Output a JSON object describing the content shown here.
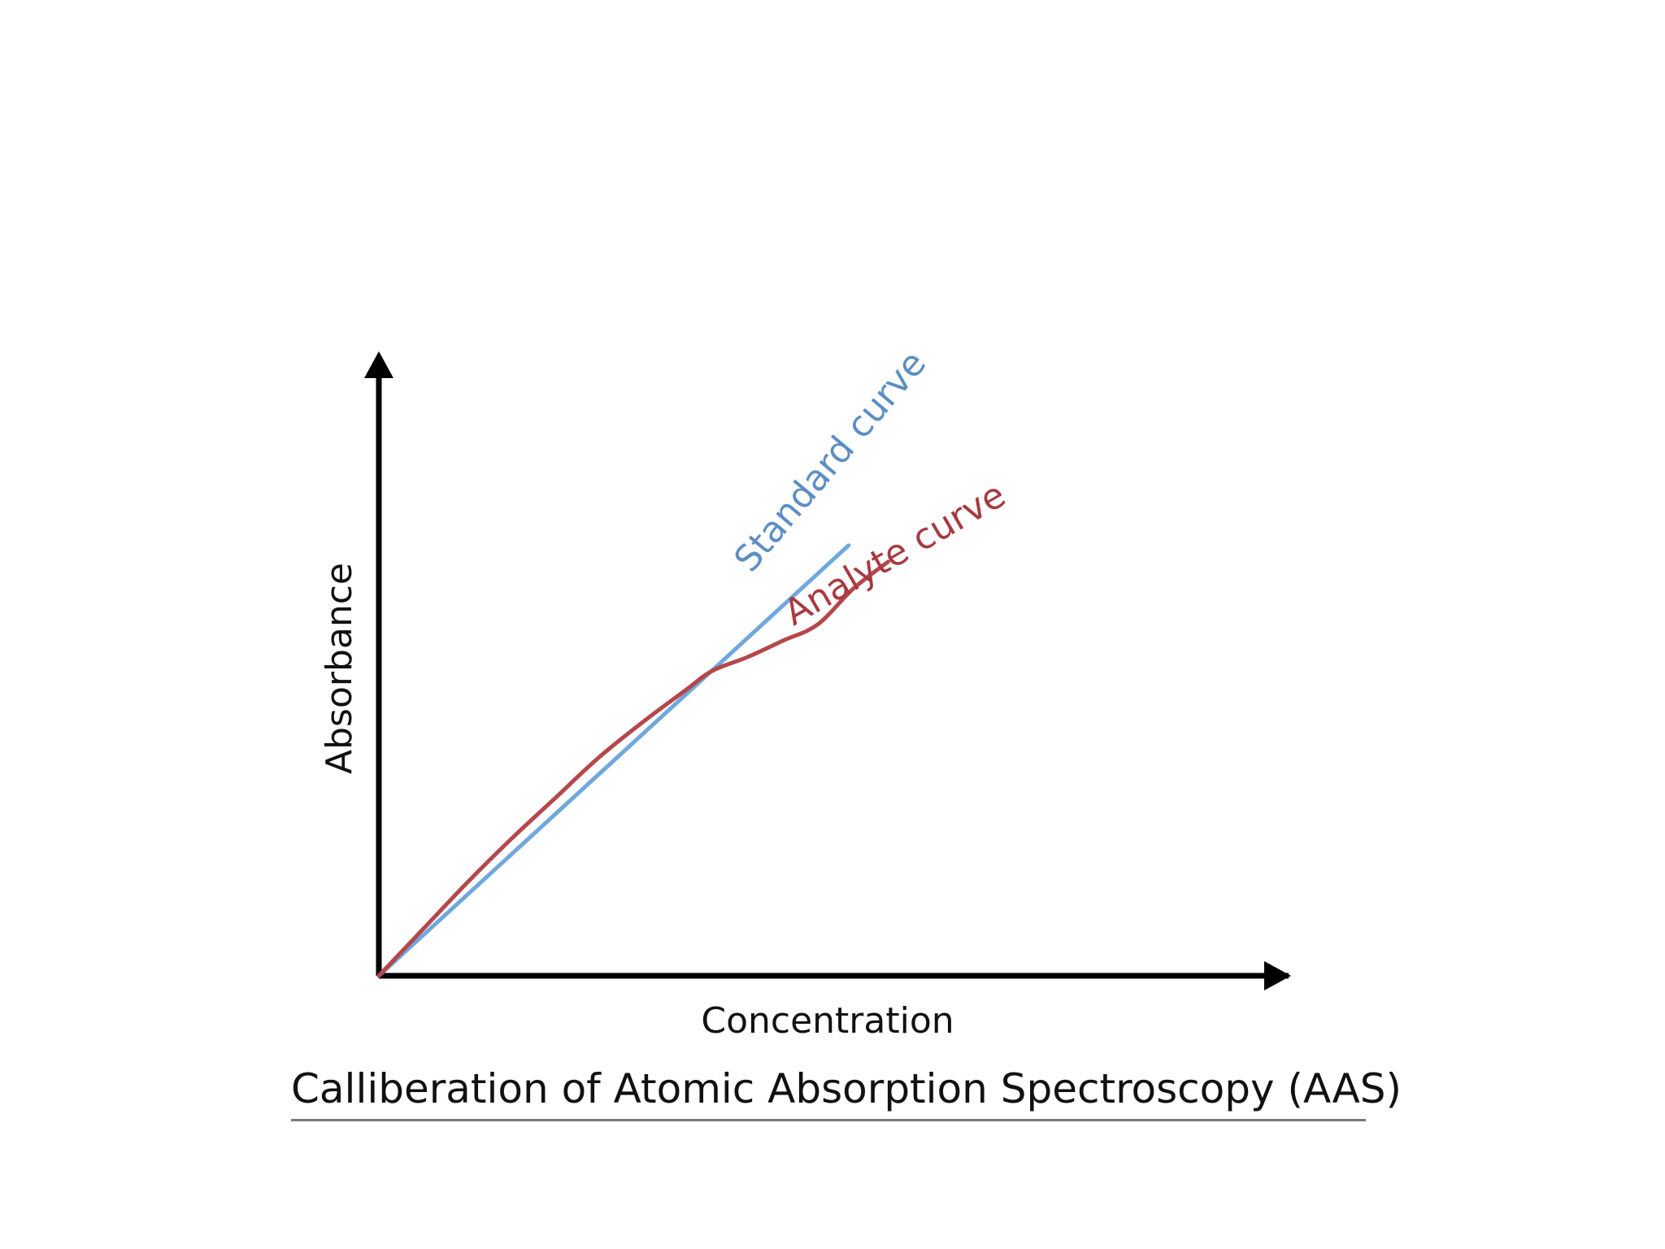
{
  "chart_data": {
    "type": "line",
    "title": "Calliberation of Atomic Absorption Spectroscopy (AAS)",
    "xlabel": "Concentration",
    "ylabel": "Absorbance",
    "xlim": [
      0,
      100
    ],
    "ylim": [
      0,
      100
    ],
    "grid": false,
    "ticks": false,
    "series": [
      {
        "name": "Standard curve",
        "color": "#6fa8dc",
        "label_color": "#5b8ec4",
        "x": [
          0,
          53.5
        ],
        "y": [
          0,
          79
        ]
      },
      {
        "name": "Analyte curve",
        "color": "#b5474b",
        "label_color": "#a8393f",
        "x": [
          0,
          5,
          10,
          15,
          20,
          25,
          30,
          35,
          38,
          42,
          46,
          50,
          54,
          58
        ],
        "y": [
          0,
          8.5,
          17,
          25,
          32.5,
          40,
          46.5,
          52.5,
          56,
          58.5,
          61.5,
          64.5,
          71,
          76
        ]
      }
    ]
  }
}
